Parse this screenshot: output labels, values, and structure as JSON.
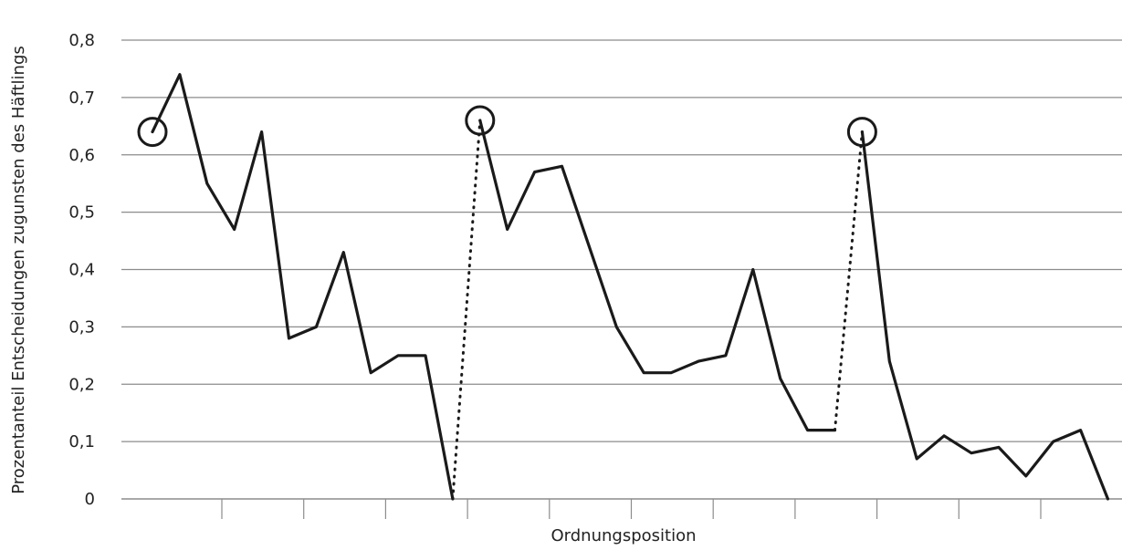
{
  "chart_data": {
    "type": "line",
    "xlabel": "Ordnungsposition",
    "ylabel": "Prozentanteil Entscheidungen zugunsten des Häftlings",
    "ylim": [
      0,
      0.8
    ],
    "y_ticks": [
      "0",
      "0,1",
      "0,2",
      "0,3",
      "0,4",
      "0,5",
      "0,6",
      "0,7",
      "0,8"
    ],
    "grid": true,
    "legend": "none",
    "series_color": "#1a1a1a",
    "segments": [
      {
        "x": [
          1,
          2,
          3,
          4,
          5,
          6,
          7,
          8,
          9,
          10,
          11,
          12
        ],
        "values": [
          0.64,
          0.74,
          0.55,
          0.47,
          0.64,
          0.28,
          0.3,
          0.43,
          0.22,
          0.25,
          0.25,
          0.0
        ]
      },
      {
        "x": [
          13,
          14,
          15,
          16,
          17,
          18,
          19,
          20,
          21,
          22,
          23,
          24,
          25,
          26
        ],
        "values": [
          0.66,
          0.47,
          0.57,
          0.58,
          0.44,
          0.3,
          0.22,
          0.22,
          0.24,
          0.25,
          0.4,
          0.21,
          0.12,
          0.12
        ]
      },
      {
        "x": [
          27,
          28,
          29,
          30,
          31,
          32,
          33,
          34,
          35,
          36
        ],
        "values": [
          0.64,
          0.24,
          0.07,
          0.11,
          0.08,
          0.09,
          0.04,
          0.1,
          0.12,
          0.0
        ]
      }
    ],
    "connectors": [
      {
        "from": [
          12,
          0.0
        ],
        "to": [
          13,
          0.66
        ]
      },
      {
        "from": [
          26,
          0.12
        ],
        "to": [
          27,
          0.64
        ]
      }
    ],
    "circled_points": [
      {
        "x": 1,
        "y": 0.64
      },
      {
        "x": 13,
        "y": 0.66
      },
      {
        "x": 27,
        "y": 0.64
      }
    ],
    "x_tick_count": 11
  }
}
